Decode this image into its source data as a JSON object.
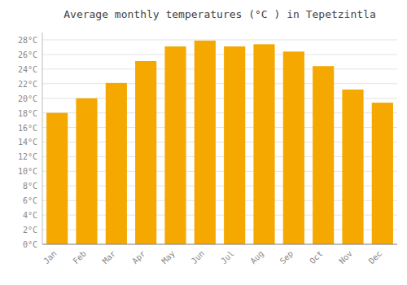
{
  "chart_data": {
    "type": "bar",
    "title": "Average monthly temperatures (°C ) in Tepetzintla",
    "categories": [
      "Jan",
      "Feb",
      "Mar",
      "Apr",
      "May",
      "Jun",
      "Jul",
      "Aug",
      "Sep",
      "Oct",
      "Nov",
      "Dec"
    ],
    "values": [
      18.0,
      20.0,
      22.1,
      25.1,
      27.1,
      27.9,
      27.1,
      27.4,
      26.4,
      24.4,
      21.2,
      19.4
    ],
    "color": "#F5A800",
    "ylim": [
      0,
      29
    ],
    "yticks": [
      {
        "value": 0,
        "label": "0°C"
      },
      {
        "value": 2,
        "label": "2°C"
      },
      {
        "value": 4,
        "label": "4°C"
      },
      {
        "value": 6,
        "label": "6°C"
      },
      {
        "value": 8,
        "label": "8°C"
      },
      {
        "value": 10,
        "label": "10°C"
      },
      {
        "value": 12,
        "label": "12°C"
      },
      {
        "value": 14,
        "label": "14°C"
      },
      {
        "value": 16,
        "label": "16°C"
      },
      {
        "value": 18,
        "label": "18°C"
      },
      {
        "value": 20,
        "label": "20°C"
      },
      {
        "value": 22,
        "label": "22°C"
      },
      {
        "value": 24,
        "label": "24°C"
      },
      {
        "value": 26,
        "label": "26°C"
      },
      {
        "value": 28,
        "label": "28°C"
      }
    ],
    "grid": true
  }
}
